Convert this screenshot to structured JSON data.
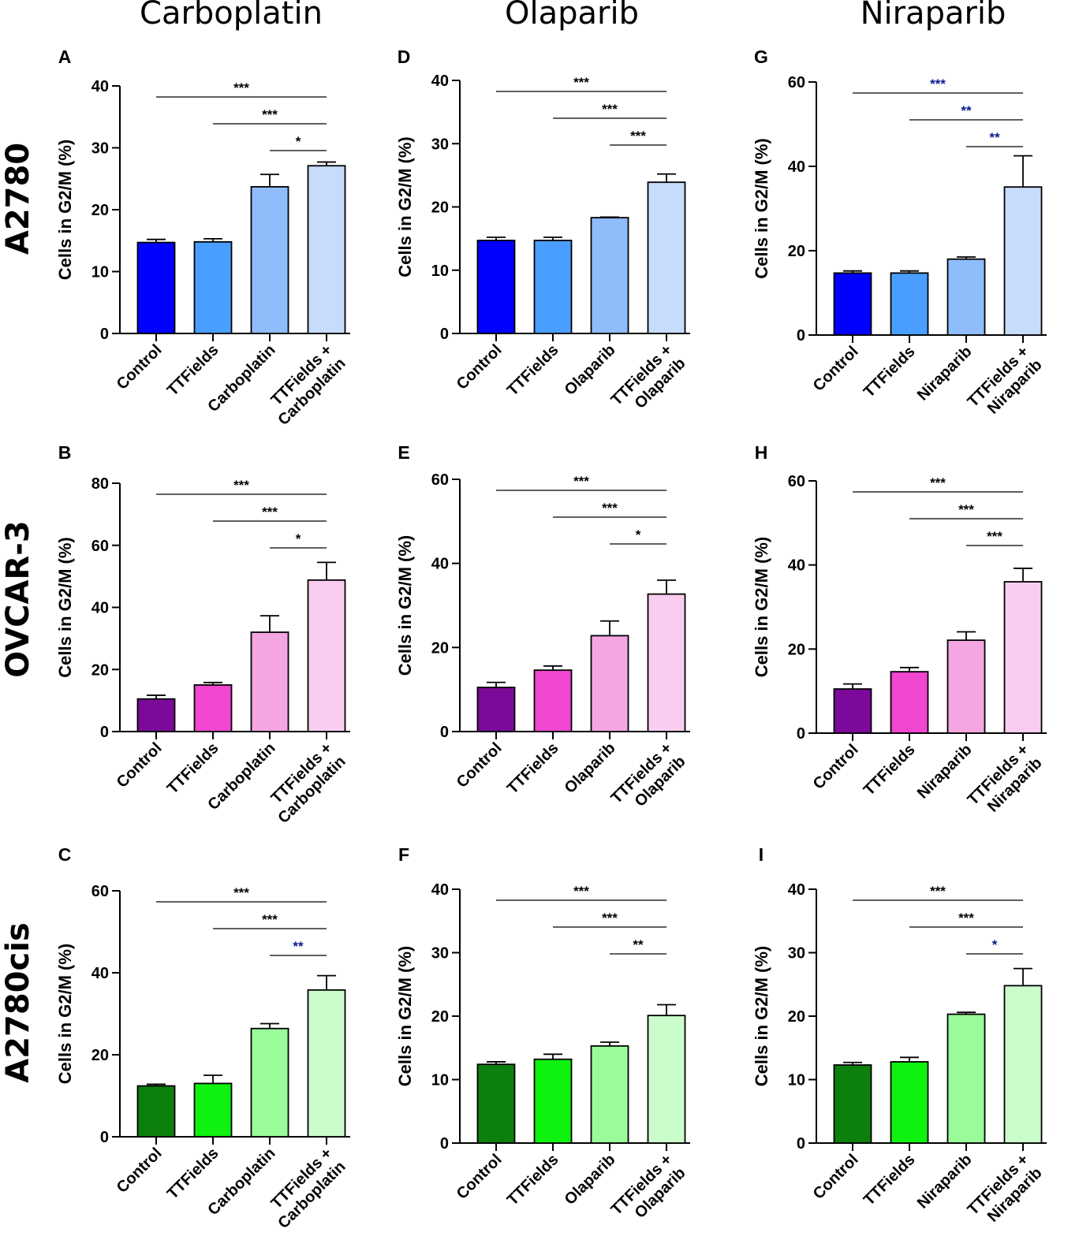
{
  "figure": {
    "column_titles": [
      "Carboplatin",
      "Olaparib",
      "Niraparib"
    ],
    "row_titles": [
      "A2780",
      "OVCAR-3",
      "A2780cis"
    ]
  },
  "colors": {
    "A2780": [
      "#0000ff",
      "#4a9eff",
      "#8fbcfb",
      "#c7dcfb"
    ],
    "OVCAR-3": [
      "#7b0a9a",
      "#f046d0",
      "#f4a6e3",
      "#f8cdef"
    ],
    "A2780cis": [
      "#0d7f0d",
      "#0ff10f",
      "#9afb9a",
      "#cbfccb"
    ],
    "sig_black": "#000000",
    "sig_blue": "#0a1a8c"
  },
  "chart_data": [
    {
      "panel": "A",
      "type": "bar",
      "cell_line": "A2780",
      "drug": "Carboplatin",
      "categories": [
        [
          "Control"
        ],
        [
          "TTFields"
        ],
        [
          "Carboplatin"
        ],
        [
          "TTFields +",
          "Carboplatin"
        ]
      ],
      "values": [
        14.7,
        14.8,
        23.7,
        27.1
      ],
      "errors": [
        0.5,
        0.5,
        2.0,
        0.6
      ],
      "ylabel": "Cells in G2/M (%)",
      "ylim": [
        0,
        40
      ],
      "yticks": [
        0,
        10,
        20,
        30,
        40
      ],
      "comparisons": [
        {
          "from": 0,
          "to": 3,
          "label": "***",
          "color": "black"
        },
        {
          "from": 1,
          "to": 3,
          "label": "***",
          "color": "black"
        },
        {
          "from": 2,
          "to": 3,
          "label": "*",
          "color": "black"
        }
      ]
    },
    {
      "panel": "B",
      "type": "bar",
      "cell_line": "OVCAR-3",
      "drug": "Carboplatin",
      "categories": [
        [
          "Control"
        ],
        [
          "TTFields"
        ],
        [
          "Carboplatin"
        ],
        [
          "TTFields +",
          "Carboplatin"
        ]
      ],
      "values": [
        10.5,
        15.0,
        32.0,
        48.8
      ],
      "errors": [
        1.2,
        0.8,
        5.3,
        5.7
      ],
      "ylabel": "Cells in G2/M (%)",
      "ylim": [
        0,
        80
      ],
      "yticks": [
        0,
        20,
        40,
        60,
        80
      ],
      "comparisons": [
        {
          "from": 0,
          "to": 3,
          "label": "***",
          "color": "black"
        },
        {
          "from": 1,
          "to": 3,
          "label": "***",
          "color": "black"
        },
        {
          "from": 2,
          "to": 3,
          "label": "*",
          "color": "black"
        }
      ]
    },
    {
      "panel": "C",
      "type": "bar",
      "cell_line": "A2780cis",
      "drug": "Carboplatin",
      "categories": [
        [
          "Control"
        ],
        [
          "TTFields"
        ],
        [
          "Carboplatin"
        ],
        [
          "TTFields +",
          "Carboplatin"
        ]
      ],
      "values": [
        12.4,
        13.0,
        26.4,
        35.8
      ],
      "errors": [
        0.4,
        2.0,
        1.2,
        3.5
      ],
      "ylabel": "Cells in G2/M (%)",
      "ylim": [
        0,
        60
      ],
      "yticks": [
        0,
        20,
        40,
        60
      ],
      "comparisons": [
        {
          "from": 0,
          "to": 3,
          "label": "***",
          "color": "black"
        },
        {
          "from": 1,
          "to": 3,
          "label": "***",
          "color": "black"
        },
        {
          "from": 2,
          "to": 3,
          "label": "**",
          "color": "blue"
        }
      ]
    },
    {
      "panel": "D",
      "type": "bar",
      "cell_line": "A2780",
      "drug": "Olaparib",
      "categories": [
        [
          "Control"
        ],
        [
          "TTFields"
        ],
        [
          "Olaparib"
        ],
        [
          "TTFields +",
          "Olaparib"
        ]
      ],
      "values": [
        14.7,
        14.7,
        18.3,
        23.9
      ],
      "errors": [
        0.5,
        0.5,
        0.1,
        1.3
      ],
      "ylabel": "Cells in G2/M (%)",
      "ylim": [
        0,
        40
      ],
      "yticks": [
        0,
        10,
        20,
        30,
        40
      ],
      "comparisons": [
        {
          "from": 0,
          "to": 3,
          "label": "***",
          "color": "black"
        },
        {
          "from": 1,
          "to": 3,
          "label": "***",
          "color": "black"
        },
        {
          "from": 2,
          "to": 3,
          "label": "***",
          "color": "black"
        }
      ]
    },
    {
      "panel": "E",
      "type": "bar",
      "cell_line": "OVCAR-3",
      "drug": "Olaparib",
      "categories": [
        [
          "Control"
        ],
        [
          "TTFields"
        ],
        [
          "Olaparib"
        ],
        [
          "TTFields +",
          "Olaparib"
        ]
      ],
      "values": [
        10.5,
        14.6,
        22.8,
        32.7
      ],
      "errors": [
        1.2,
        1.0,
        3.5,
        3.3
      ],
      "ylabel": "Cells in G2/M (%)",
      "ylim": [
        0,
        60
      ],
      "yticks": [
        0,
        20,
        40,
        60
      ],
      "comparisons": [
        {
          "from": 0,
          "to": 3,
          "label": "***",
          "color": "black"
        },
        {
          "from": 1,
          "to": 3,
          "label": "***",
          "color": "black"
        },
        {
          "from": 2,
          "to": 3,
          "label": "*",
          "color": "black"
        }
      ]
    },
    {
      "panel": "F",
      "type": "bar",
      "cell_line": "A2780cis",
      "drug": "Olaparib",
      "categories": [
        [
          "Control"
        ],
        [
          "TTFields"
        ],
        [
          "Olaparib"
        ],
        [
          "TTFields +",
          "Olaparib"
        ]
      ],
      "values": [
        12.4,
        13.2,
        15.3,
        20.1
      ],
      "errors": [
        0.4,
        0.8,
        0.6,
        1.7
      ],
      "ylabel": "Cells in G2/M (%)",
      "ylim": [
        0,
        40
      ],
      "yticks": [
        0,
        10,
        20,
        30,
        40
      ],
      "comparisons": [
        {
          "from": 0,
          "to": 3,
          "label": "***",
          "color": "black"
        },
        {
          "from": 1,
          "to": 3,
          "label": "***",
          "color": "black"
        },
        {
          "from": 2,
          "to": 3,
          "label": "**",
          "color": "black"
        }
      ]
    },
    {
      "panel": "G",
      "type": "bar",
      "cell_line": "A2780",
      "drug": "Niraparib",
      "categories": [
        [
          "Control"
        ],
        [
          "TTFields"
        ],
        [
          "Niraparib"
        ],
        [
          "TTFields +",
          "Niraparib"
        ]
      ],
      "values": [
        14.7,
        14.7,
        18.0,
        35.1
      ],
      "errors": [
        0.5,
        0.5,
        0.5,
        7.4
      ],
      "ylabel": "Cells in G2/M (%)",
      "ylim": [
        0,
        60
      ],
      "yticks": [
        0,
        20,
        40,
        60
      ],
      "comparisons": [
        {
          "from": 0,
          "to": 3,
          "label": "***",
          "color": "blue"
        },
        {
          "from": 1,
          "to": 3,
          "label": "**",
          "color": "blue"
        },
        {
          "from": 2,
          "to": 3,
          "label": "**",
          "color": "blue"
        }
      ]
    },
    {
      "panel": "H",
      "type": "bar",
      "cell_line": "OVCAR-3",
      "drug": "Niraparib",
      "categories": [
        [
          "Control"
        ],
        [
          "TTFields"
        ],
        [
          "Niraparib"
        ],
        [
          "TTFields +",
          "Niraparib"
        ]
      ],
      "values": [
        10.5,
        14.6,
        22.1,
        36.0
      ],
      "errors": [
        1.2,
        1.0,
        2.0,
        3.2
      ],
      "ylabel": "Cells in G2/M (%)",
      "ylim": [
        0,
        60
      ],
      "yticks": [
        0,
        20,
        40,
        60
      ],
      "comparisons": [
        {
          "from": 0,
          "to": 3,
          "label": "***",
          "color": "black"
        },
        {
          "from": 1,
          "to": 3,
          "label": "***",
          "color": "black"
        },
        {
          "from": 2,
          "to": 3,
          "label": "***",
          "color": "black"
        }
      ]
    },
    {
      "panel": "I",
      "type": "bar",
      "cell_line": "A2780cis",
      "drug": "Niraparib",
      "categories": [
        [
          "Control"
        ],
        [
          "TTFields"
        ],
        [
          "Niraparib"
        ],
        [
          "TTFields +",
          "Niraparib"
        ]
      ],
      "values": [
        12.3,
        12.8,
        20.3,
        24.8
      ],
      "errors": [
        0.4,
        0.7,
        0.3,
        2.7
      ],
      "ylabel": "Cells in G2/M (%)",
      "ylim": [
        0,
        40
      ],
      "yticks": [
        0,
        10,
        20,
        30,
        40
      ],
      "comparisons": [
        {
          "from": 0,
          "to": 3,
          "label": "***",
          "color": "black"
        },
        {
          "from": 1,
          "to": 3,
          "label": "***",
          "color": "black"
        },
        {
          "from": 2,
          "to": 3,
          "label": "*",
          "color": "blue"
        }
      ]
    }
  ]
}
